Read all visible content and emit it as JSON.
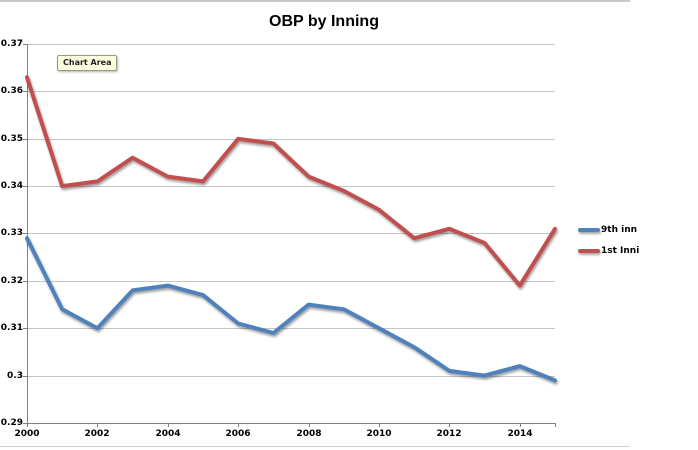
{
  "window": {
    "top_border_color": "#c9c9c9",
    "bottom_border_color": "#d2d2d2"
  },
  "tooltip": {
    "label": "Chart Area"
  },
  "colors": {
    "gridline": "#C6C6C6",
    "axis": "#808080",
    "tooltip_bg": "#FCFCE1",
    "series_blue": "#4F81BD",
    "series_red": "#C0504D"
  },
  "chart_data": {
    "type": "line",
    "title": "OBP by Inning",
    "xlabel": "",
    "ylabel": "",
    "xlim": [
      2000,
      2015
    ],
    "ylim": [
      0.29,
      0.37
    ],
    "grid": true,
    "legend_position": "right-outside",
    "x": [
      2000,
      2001,
      2002,
      2003,
      2004,
      2005,
      2006,
      2007,
      2008,
      2009,
      2010,
      2011,
      2012,
      2013,
      2014,
      2015
    ],
    "x_ticks": [
      {
        "v": 2000,
        "label": "2000"
      },
      {
        "v": 2002,
        "label": "2002"
      },
      {
        "v": 2004,
        "label": "2004"
      },
      {
        "v": 2006,
        "label": "2006"
      },
      {
        "v": 2008,
        "label": "2008"
      },
      {
        "v": 2010,
        "label": "2010"
      },
      {
        "v": 2012,
        "label": "2012"
      },
      {
        "v": 2014,
        "label": "2014"
      }
    ],
    "y_ticks": [
      {
        "v": 0.37,
        "label": "0.37"
      },
      {
        "v": 0.36,
        "label": "0.36"
      },
      {
        "v": 0.35,
        "label": "0.35"
      },
      {
        "v": 0.34,
        "label": "0.34"
      },
      {
        "v": 0.33,
        "label": "0.33"
      },
      {
        "v": 0.32,
        "label": "0.32"
      },
      {
        "v": 0.31,
        "label": "0.31"
      },
      {
        "v": 0.3,
        "label": "0.3"
      },
      {
        "v": 0.29,
        "label": "0.29"
      }
    ],
    "series": [
      {
        "name": "9th inn",
        "color": "#4F81BD",
        "values": [
          0.329,
          0.314,
          0.31,
          0.318,
          0.319,
          0.317,
          0.311,
          0.309,
          0.315,
          0.314,
          0.31,
          0.306,
          0.301,
          0.3,
          0.302,
          0.299
        ]
      },
      {
        "name": "1st Inni",
        "color": "#C0504D",
        "values": [
          0.363,
          0.34,
          0.341,
          0.346,
          0.342,
          0.341,
          0.35,
          0.349,
          0.342,
          0.339,
          0.335,
          0.329,
          0.331,
          0.328,
          0.319,
          0.331
        ]
      }
    ]
  }
}
